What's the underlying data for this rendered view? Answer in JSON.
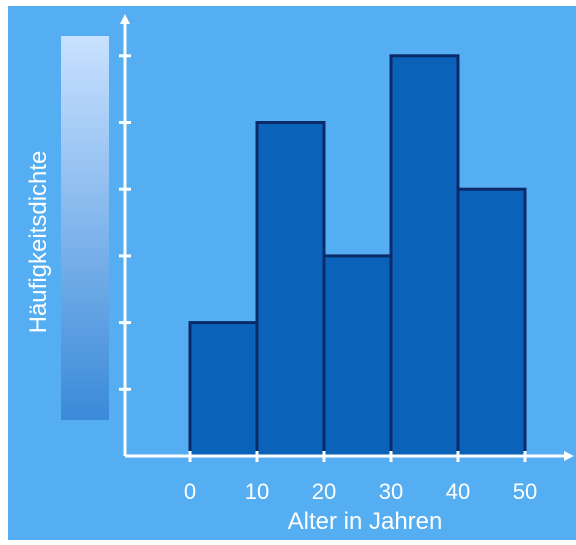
{
  "colors": {
    "background": "#55adf2",
    "bar_fill": "#0a63b8",
    "bar_stroke": "#0a2a6a",
    "axis": "#ffffff",
    "text": "#ffffff"
  },
  "chart_data": {
    "type": "bar",
    "title": "",
    "xlabel": "Alter in Jahren",
    "ylabel": "Häufigkeitsdichte",
    "bins": [
      {
        "from": 0,
        "to": 10,
        "value": 2
      },
      {
        "from": 10,
        "to": 20,
        "value": 5
      },
      {
        "from": 20,
        "to": 30,
        "value": 3
      },
      {
        "from": 30,
        "to": 40,
        "value": 6
      },
      {
        "from": 40,
        "to": 50,
        "value": 4
      }
    ],
    "x_ticks": [
      "0",
      "10",
      "20",
      "30",
      "40",
      "50"
    ],
    "y_tick_count": 6,
    "xlim": [
      0,
      50
    ],
    "ylim": [
      0,
      6
    ],
    "grid": false,
    "legend": "none"
  }
}
